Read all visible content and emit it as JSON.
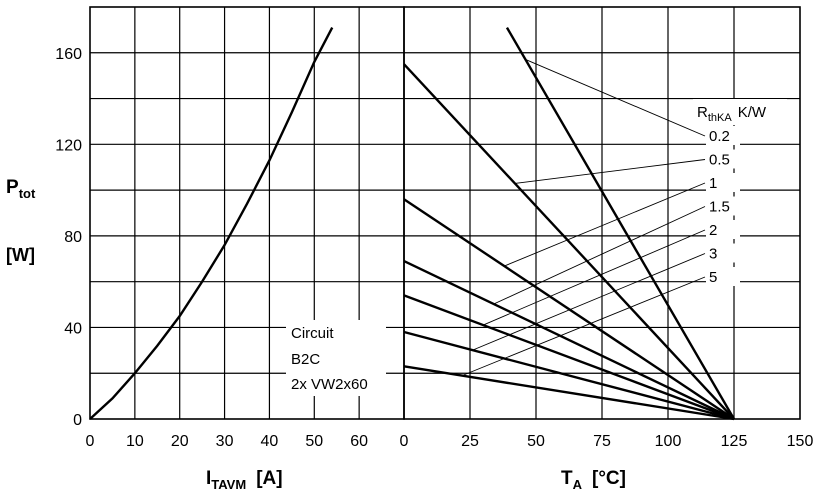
{
  "chart_data": [
    {
      "type": "line",
      "xlabel_main": "I",
      "xlabel_sub": "TAVM",
      "xlabel_unit": "[A]",
      "ylabel_main": "P",
      "ylabel_sub": "tot",
      "ylabel_unit": "[W]",
      "xlim": [
        0,
        70
      ],
      "ylim": [
        0,
        180
      ],
      "xticks": [
        0,
        10,
        20,
        30,
        40,
        50,
        60
      ],
      "yticks": [
        0,
        40,
        80,
        120,
        160
      ],
      "series": [
        {
          "x": [
            0,
            5,
            10,
            15,
            20,
            25,
            30,
            35,
            40,
            45,
            50,
            54
          ],
          "y": [
            0,
            9,
            20,
            32,
            45,
            60,
            76,
            94,
            113,
            134,
            156,
            171
          ]
        }
      ],
      "annotation": [
        "Circuit",
        "B2C",
        "2x VW2x60"
      ]
    },
    {
      "type": "line",
      "xlabel_main": "T",
      "xlabel_sub": "A",
      "xlabel_unit": "[°C]",
      "xlim": [
        0,
        150
      ],
      "ylim": [
        0,
        180
      ],
      "xticks": [
        0,
        25,
        50,
        75,
        100,
        125,
        150
      ],
      "legend_title_main": "R",
      "legend_title_sub": "thKA",
      "legend_title_unit": "K/W",
      "series": [
        {
          "name": "0.2",
          "x": [
            39,
            125
          ],
          "y": [
            171,
            0
          ]
        },
        {
          "name": "0.5",
          "x": [
            0,
            125
          ],
          "y": [
            155,
            0
          ]
        },
        {
          "name": "1",
          "x": [
            0,
            125
          ],
          "y": [
            96,
            0
          ]
        },
        {
          "name": "1.5",
          "x": [
            0,
            125
          ],
          "y": [
            69,
            0
          ]
        },
        {
          "name": "2",
          "x": [
            0,
            125
          ],
          "y": [
            54,
            0
          ]
        },
        {
          "name": "3",
          "x": [
            0,
            125
          ],
          "y": [
            38,
            0
          ]
        },
        {
          "name": "5",
          "x": [
            0,
            125
          ],
          "y": [
            23,
            0
          ]
        }
      ]
    }
  ]
}
